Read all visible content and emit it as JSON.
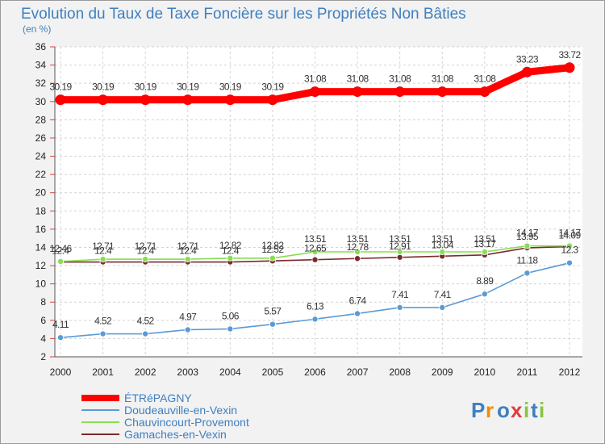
{
  "chart_data": {
    "type": "line",
    "title": "Evolution du Taux de Taxe Foncière sur les Propriétés Non Bâties",
    "subtitle": "(en %)",
    "categories": [
      "2000",
      "2001",
      "2002",
      "2003",
      "2004",
      "2005",
      "2006",
      "2007",
      "2008",
      "2009",
      "2010",
      "2011",
      "2012"
    ],
    "ylim": [
      2,
      36
    ],
    "yticks": [
      2,
      4,
      6,
      8,
      10,
      12,
      14,
      16,
      18,
      20,
      22,
      24,
      26,
      28,
      30,
      32,
      34,
      36
    ],
    "grid": true,
    "legend_position": "bottom-left",
    "series": [
      {
        "name": "ÉTRéPAGNY",
        "color": "#ff0000",
        "values": [
          30.19,
          30.19,
          30.19,
          30.19,
          30.19,
          30.19,
          31.08,
          31.08,
          31.08,
          31.08,
          31.08,
          33.23,
          33.72
        ],
        "labels": [
          "30.19",
          "30.19",
          "30.19",
          "30.19",
          "30.19",
          "30.19",
          "31.08",
          "31.08",
          "31.08",
          "31.08",
          "31.08",
          "33.23",
          "33.72"
        ]
      },
      {
        "name": "Doudeauville-en-Vexin",
        "color": "#5b9bd5",
        "values": [
          4.11,
          4.52,
          4.52,
          4.97,
          5.06,
          5.57,
          6.13,
          6.74,
          7.41,
          7.41,
          8.89,
          11.18,
          12.3
        ],
        "labels": [
          "4.11",
          "4.52",
          "4.52",
          "4.97",
          "5.06",
          "5.57",
          "6.13",
          "6.74",
          "7.41",
          "7.41",
          "8.89",
          "11.18",
          "12.3"
        ]
      },
      {
        "name": "Chauvincourt-Provemont",
        "color": "#88dd55",
        "values": [
          12.46,
          12.71,
          12.71,
          12.71,
          12.82,
          12.82,
          13.51,
          13.51,
          13.51,
          13.51,
          13.51,
          14.17,
          14.17
        ],
        "labels": [
          "12.46",
          "12.71",
          "12.71",
          "12.71",
          "12.82",
          "12.82",
          "13.51",
          "13.51",
          "13.51",
          "13.51",
          "13.51",
          "14.17",
          "14.17"
        ]
      },
      {
        "name": "Gamaches-en-Vexin",
        "color": "#7a2a2a",
        "values": [
          12.4,
          12.4,
          12.4,
          12.4,
          12.4,
          12.52,
          12.65,
          12.78,
          12.91,
          13.04,
          13.17,
          13.95,
          14.09
        ],
        "labels": [
          "12.4",
          "12.4",
          "12.4",
          "12.4",
          "12.4",
          "12.52",
          "12.65",
          "12.78",
          "12.91",
          "13.04",
          "13.17",
          "13.95",
          "14.09"
        ]
      }
    ]
  },
  "logo": {
    "text": "Proxiti",
    "colors": [
      "#3f7fbf",
      "#f08c00",
      "#3f7fbf",
      "#e03c3c",
      "#88c440",
      "#3f7fbf",
      "#88c440"
    ]
  }
}
